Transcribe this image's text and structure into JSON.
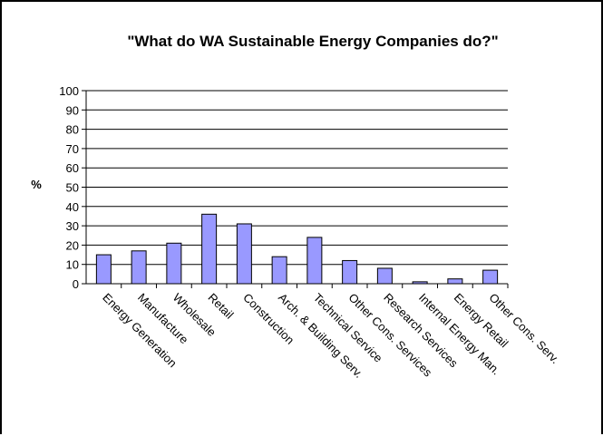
{
  "chart_data": {
    "type": "bar",
    "title": "\"What do WA Sustainable Energy Companies do?\"",
    "xlabel": "",
    "ylabel": "%",
    "ylim": [
      0,
      100
    ],
    "yticks": [
      0,
      10,
      20,
      30,
      40,
      50,
      60,
      70,
      80,
      90,
      100
    ],
    "grid": true,
    "legend": "none",
    "bar_color": "#9999ff",
    "categories": [
      "Energy Generation",
      "Manufacture",
      "Wholesale",
      "Retail",
      "Construction",
      "Arch. & Building Serv.",
      "Technical Service",
      "Other Cons. Services",
      "Research Services",
      "Internal Energy Man.",
      "Energy Retail",
      "Other Cons. Serv."
    ],
    "values": [
      15,
      17,
      21,
      36,
      31,
      14,
      24,
      12,
      8,
      1,
      2.5,
      7
    ]
  }
}
